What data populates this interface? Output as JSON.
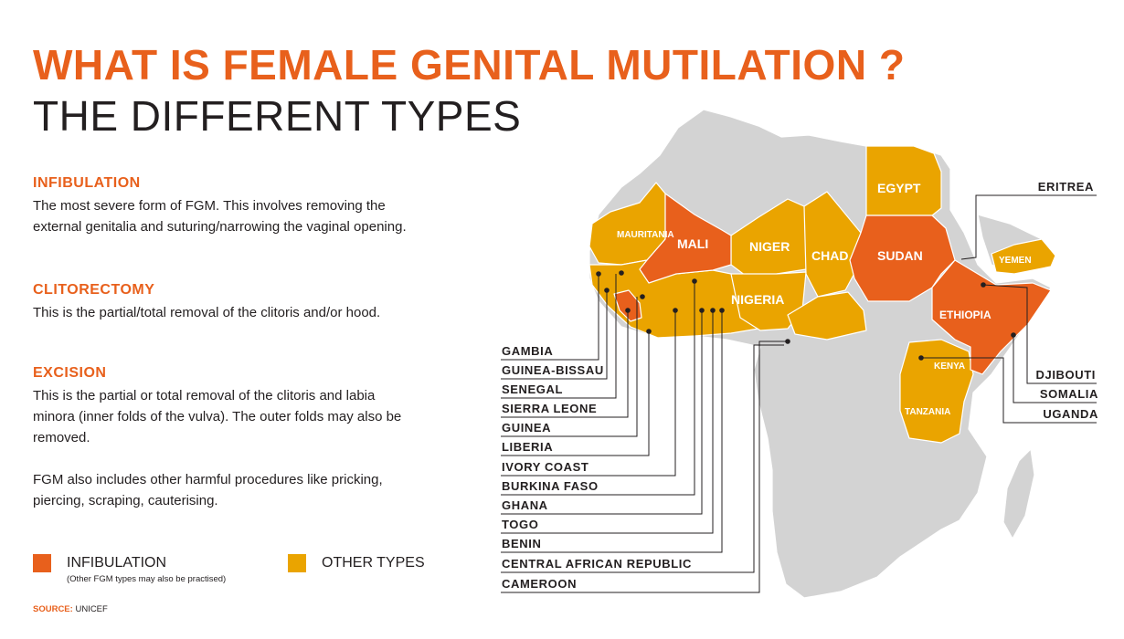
{
  "header": {
    "title": "WHAT IS FEMALE GENITAL MUTILATION ?",
    "subtitle": "THE DIFFERENT TYPES"
  },
  "sections": [
    {
      "heading": "INFIBULATION",
      "body": "The most severe form of FGM. This involves removing the external genitalia and suturing/narrowing the vaginal opening."
    },
    {
      "heading": "CLITORECTOMY",
      "body": "This is the partial/total removal of the clitoris and/or hood."
    },
    {
      "heading": "EXCISION",
      "body": "This is the partial or total removal of the clitoris and labia minora (inner folds of the vulva). The outer folds may also be removed."
    }
  ],
  "note": "FGM also includes other harmful procedures like pricking, piercing, scraping, cauterising.",
  "legend": {
    "infibulation_label": "INFIBULATION",
    "infibulation_note": "(Other FGM types may also be practised)",
    "other_label": "OTHER TYPES"
  },
  "source": {
    "key": "SOURCE:",
    "value": "UNICEF"
  },
  "colors": {
    "infibulation": "#e8601c",
    "other": "#eaa400",
    "land": "#d3d3d3",
    "border": "#ffffff",
    "accent_text": "#e8601c",
    "leader": "#231f20"
  },
  "map": {
    "in_map_labels": {
      "mauritania": "MAURITANIA",
      "mali": "MALI",
      "niger": "NIGER",
      "chad": "CHAD",
      "sudan": "SUDAN",
      "egypt": "EGYPT",
      "nigeria": "NIGERIA",
      "ethiopia": "ETHIOPIA",
      "kenya": "KENYA",
      "tanzania": "TANZANIA",
      "yemen": "YEMEN"
    },
    "left_labels": [
      "GAMBIA",
      "GUINEA-BISSAU",
      "SENEGAL",
      "SIERRA LEONE",
      "GUINEA",
      "LIBERIA",
      "IVORY COAST",
      "BURKINA FASO",
      "GHANA",
      "TOGO",
      "BENIN",
      "CENTRAL AFRICAN REPUBLIC",
      "CAMEROON"
    ],
    "right_labels": [
      "ERITREA",
      "DJIBOUTI",
      "SOMALIA",
      "UGANDA"
    ]
  }
}
